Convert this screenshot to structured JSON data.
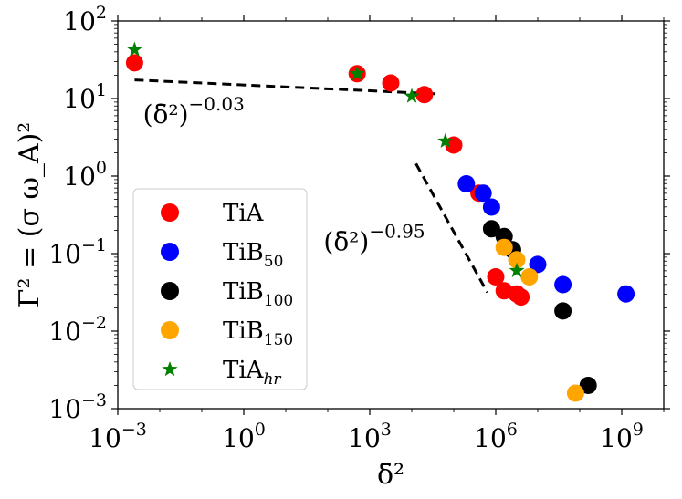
{
  "chart_data": {
    "type": "scatter",
    "xscale": "log",
    "yscale": "log",
    "xlim_exp": [
      -3,
      10
    ],
    "ylim_exp": [
      -3,
      2
    ],
    "xlabel": "δ̄²",
    "ylabel": "Γ² = (σ ω_A)²",
    "x_ticks": [
      {
        "base": "10",
        "exp": "−3",
        "value": -3
      },
      {
        "base": "10",
        "exp": "0",
        "value": 0
      },
      {
        "base": "10",
        "exp": "3",
        "value": 3
      },
      {
        "base": "10",
        "exp": "6",
        "value": 6
      },
      {
        "base": "10",
        "exp": "9",
        "value": 9
      }
    ],
    "y_ticks": [
      {
        "base": "10",
        "exp": "−3",
        "value": -3
      },
      {
        "base": "10",
        "exp": "−2",
        "value": -2
      },
      {
        "base": "10",
        "exp": "−1",
        "value": -1
      },
      {
        "base": "10",
        "exp": "0",
        "value": 0
      },
      {
        "base": "10",
        "exp": "1",
        "value": 1
      },
      {
        "base": "10",
        "exp": "2",
        "value": 2
      }
    ],
    "series": [
      {
        "name": "TiA",
        "label_main": "TiA",
        "label_sub": "",
        "marker": "circle",
        "color": "#ff0000",
        "points_log10": [
          [
            -2.6,
            1.46
          ],
          [
            2.7,
            1.32
          ],
          [
            3.5,
            1.2
          ],
          [
            4.3,
            1.05
          ],
          [
            5.0,
            0.4
          ],
          [
            5.6,
            -0.22
          ],
          [
            6.0,
            -1.3
          ],
          [
            6.2,
            -1.48
          ],
          [
            6.5,
            -1.52
          ],
          [
            6.6,
            -1.56
          ]
        ]
      },
      {
        "name": "TiB50",
        "label_main": "TiB",
        "label_sub": "50",
        "marker": "circle",
        "color": "#0000ff",
        "points_log10": [
          [
            5.3,
            -0.1
          ],
          [
            5.7,
            -0.22
          ],
          [
            5.9,
            -0.4
          ],
          [
            7.0,
            -1.14
          ],
          [
            7.6,
            -1.4
          ],
          [
            9.1,
            -1.52
          ]
        ]
      },
      {
        "name": "TiB100",
        "label_main": "TiB",
        "label_sub": "100",
        "marker": "circle",
        "color": "#000000",
        "points_log10": [
          [
            5.9,
            -0.68
          ],
          [
            6.2,
            -0.78
          ],
          [
            6.4,
            -0.95
          ],
          [
            7.6,
            -1.74
          ],
          [
            8.2,
            -2.7
          ]
        ]
      },
      {
        "name": "TiB150",
        "label_main": "TiB",
        "label_sub": "150",
        "marker": "circle",
        "color": "#ffa500",
        "points_log10": [
          [
            6.2,
            -0.92
          ],
          [
            6.5,
            -1.08
          ],
          [
            6.8,
            -1.3
          ],
          [
            7.9,
            -2.8
          ]
        ]
      },
      {
        "name": "TiAhr",
        "label_main": "TiA",
        "label_sub": "hr",
        "marker": "star",
        "color": "#008000",
        "points_log10": [
          [
            -2.6,
            1.63
          ],
          [
            2.7,
            1.32
          ],
          [
            4.0,
            1.03
          ],
          [
            4.8,
            0.45
          ],
          [
            6.5,
            -1.22
          ]
        ]
      }
    ],
    "fit_lines": [
      {
        "label_base": "(δ̄²)",
        "exponent": "−0.03",
        "from_log10": [
          -2.6,
          1.24
        ],
        "to_log10": [
          4.6,
          1.06
        ]
      },
      {
        "label_base": "(δ̄²)",
        "exponent": "−0.95",
        "from_log10": [
          4.1,
          0.16
        ],
        "to_log10": [
          5.8,
          -1.5
        ]
      }
    ],
    "legend_position": "center-left"
  },
  "colors": {
    "background": "#ffffff",
    "axes": "#000000",
    "legend_border": "#cccccc",
    "fit_line": "#000000"
  }
}
